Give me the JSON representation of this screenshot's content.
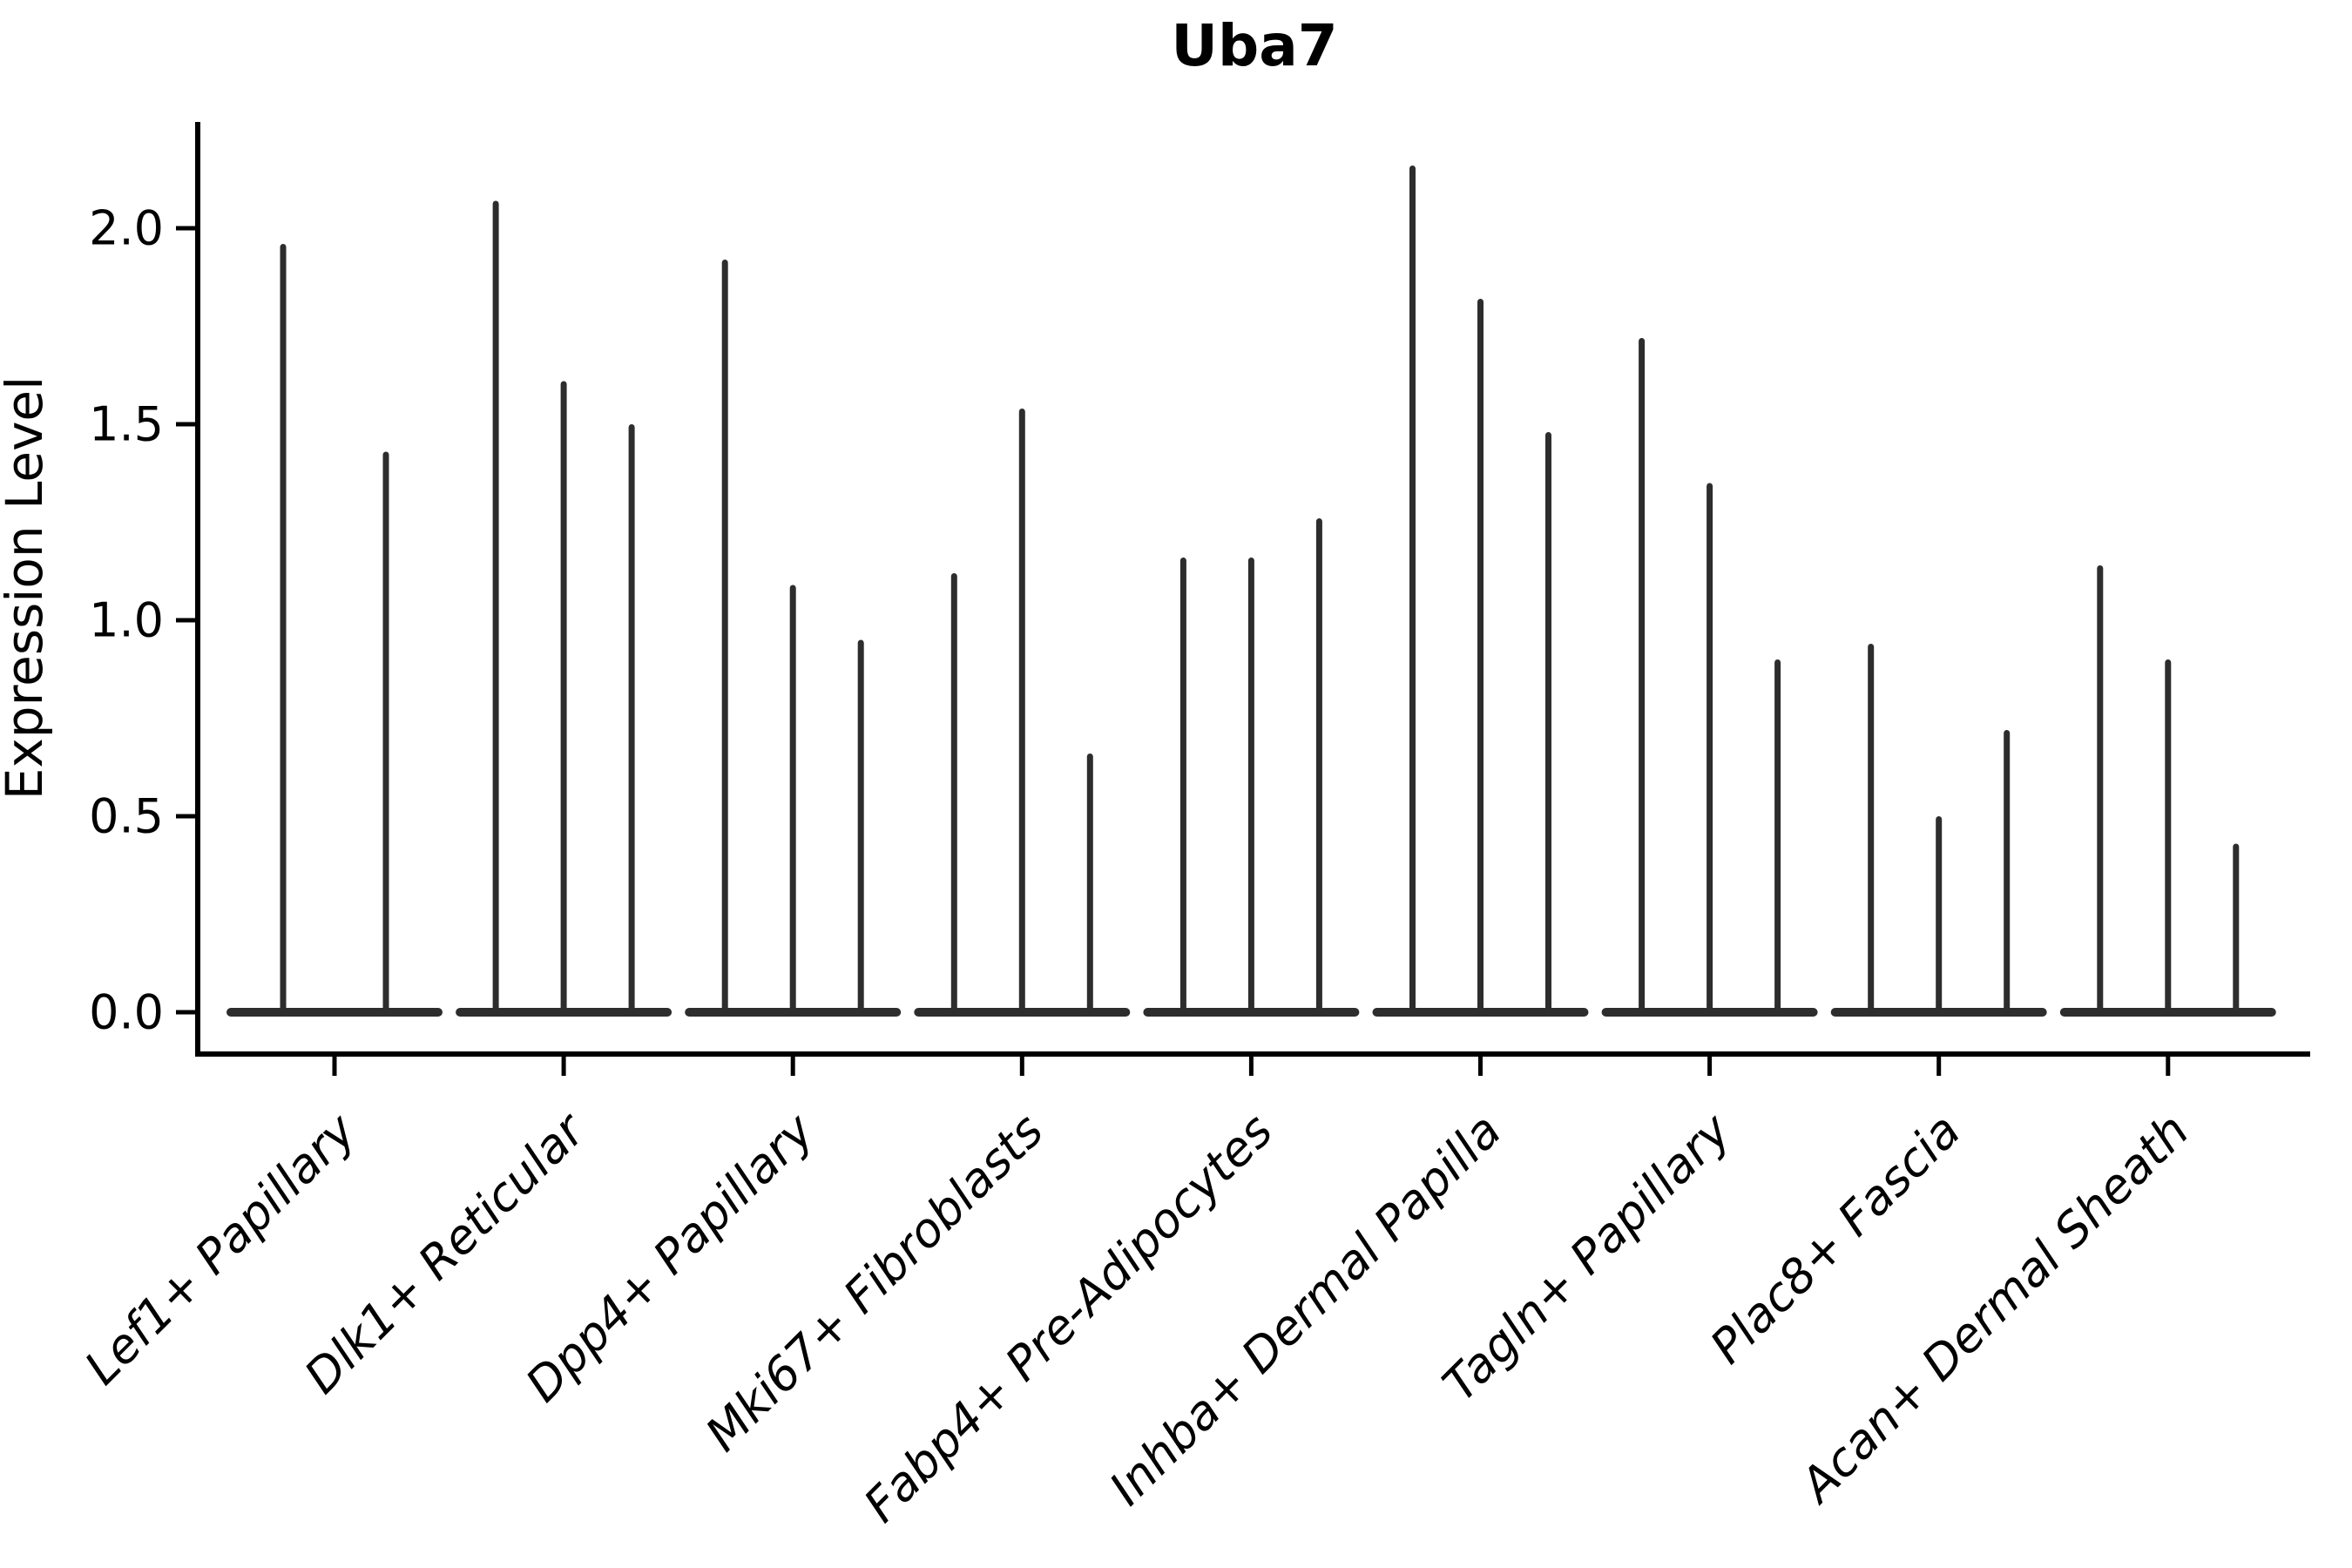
{
  "title": "Uba7",
  "ylabel": "Expression Level",
  "chart_data": {
    "type": "violin",
    "title": "Uba7",
    "xlabel": "",
    "ylabel": "Expression Level",
    "ylim": [
      -0.11,
      2.27
    ],
    "y_ticks": [
      0.0,
      0.5,
      1.0,
      1.5,
      2.0
    ],
    "y_tick_labels": [
      "0.0",
      "0.5",
      "1.0",
      "1.5",
      "2.0"
    ],
    "grid": false,
    "legend": "none",
    "violin_color": "#2d2d2d",
    "axis_color": "#000000",
    "description": "Needle-shaped violins: bulk of expression density at 0 (wide flat base), thin spikes reaching the max expression of each sub-violin",
    "categories": [
      "Lef1+ Papillary",
      "Dlk1+ Reticular",
      "Dpp4+ Papillary",
      "Mki67+ Fibroblasts",
      "Fabp4+ Pre-Adipocytes",
      "Inhba+ Dermal Papilla",
      "Tagln+ Papillary",
      "Plac8+ Fascia",
      "Acan+ Dermal Sheath"
    ],
    "series": [
      {
        "category": "Lef1+ Papillary",
        "violin_max_values": [
          1.96,
          1.43
        ]
      },
      {
        "category": "Dlk1+ Reticular",
        "violin_max_values": [
          2.07,
          1.61,
          1.5
        ]
      },
      {
        "category": "Dpp4+ Papillary",
        "violin_max_values": [
          1.92,
          1.09,
          0.95
        ]
      },
      {
        "category": "Mki67+ Fibroblasts",
        "violin_max_values": [
          1.12,
          1.54,
          0.66
        ]
      },
      {
        "category": "Fabp4+ Pre-Adipocytes",
        "violin_max_values": [
          1.16,
          1.16,
          1.26
        ]
      },
      {
        "category": "Inhba+ Dermal Papilla",
        "violin_max_values": [
          2.16,
          1.82,
          1.48
        ]
      },
      {
        "category": "Tagln+ Papillary",
        "violin_max_values": [
          1.72,
          1.35,
          0.9
        ]
      },
      {
        "category": "Plac8+ Fascia",
        "violin_max_values": [
          0.94,
          0.5,
          0.72
        ]
      },
      {
        "category": "Acan+ Dermal Sheath",
        "violin_max_values": [
          1.14,
          0.9,
          0.43
        ]
      }
    ]
  }
}
